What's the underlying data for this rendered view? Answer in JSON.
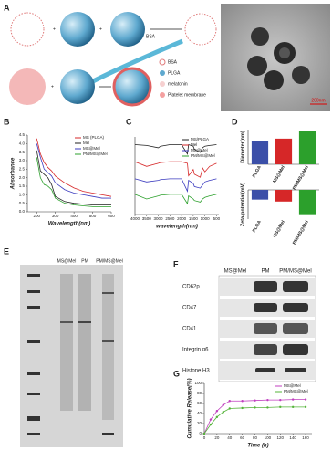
{
  "panels": [
    "A",
    "B",
    "C",
    "D",
    "E",
    "F",
    "G"
  ],
  "schematic": {
    "arrow_label": "BSA",
    "legend": [
      "BSA",
      "PLGA",
      "melatonin",
      "Platelet membrane"
    ],
    "scale_bar": "200nm"
  },
  "gel": {
    "lanes": [
      "MS@Mel",
      "PM",
      "PM/MS@Mel"
    ]
  },
  "blot": {
    "lanes": [
      "MS@Mel",
      "PM",
      "PM/MS@Mel"
    ],
    "rows": [
      "CD62p",
      "CD47",
      "CD41",
      "Integrin α6",
      "Histone H3"
    ]
  },
  "chart_data": [
    {
      "type": "line",
      "x_label": "Wavelength(nm)",
      "y_label": "Absorbance",
      "legend": "upper right",
      "x": [
        200,
        220,
        240,
        260,
        280,
        300,
        350,
        400,
        450,
        500,
        550,
        600
      ],
      "xlim": [
        150,
        600
      ],
      "xticks": [
        200,
        300,
        400,
        500,
        600
      ],
      "ylim": [
        0,
        4.5
      ],
      "yticks": [
        {
          "value": 0,
          "label": "0.0"
        },
        0.5,
        {
          "value": 1,
          "label": "1.0"
        },
        1.5,
        {
          "value": 2,
          "label": "2.0"
        },
        2.5,
        {
          "value": 3,
          "label": "3.0"
        },
        3.5,
        {
          "value": 4,
          "label": "4.0"
        },
        4.5
      ],
      "series": [
        {
          "name": "MS (PLGA)",
          "color": "#d62728",
          "values": [
            4.3,
            3.4,
            2.9,
            2.6,
            2.4,
            2.1,
            1.7,
            1.4,
            1.2,
            1.1,
            1.0,
            0.9
          ]
        },
        {
          "name": "Mel",
          "color": "#222222",
          "values": [
            3.6,
            2.4,
            2.2,
            2.0,
            1.6,
            0.9,
            0.6,
            0.5,
            0.45,
            0.4,
            0.4,
            0.4
          ]
        },
        {
          "name": "MS@Mel",
          "color": "#3b3bbf",
          "values": [
            4.0,
            3.2,
            2.5,
            2.3,
            2.1,
            1.7,
            1.3,
            1.1,
            1.0,
            0.9,
            0.8,
            0.8
          ]
        },
        {
          "name": "PM/MS@Mel",
          "color": "#2ca02c",
          "values": [
            3.2,
            2.0,
            1.6,
            1.5,
            1.3,
            0.8,
            0.5,
            0.4,
            0.35,
            0.3,
            0.3,
            0.3
          ]
        }
      ]
    },
    {
      "type": "line",
      "x_label": "wavelength(nm)",
      "legend": "upper right",
      "x": [
        4000,
        3500,
        3000,
        2900,
        2500,
        2000,
        1750,
        1700,
        1500,
        1450,
        1200,
        1100,
        1000,
        800,
        500
      ],
      "xlim": [
        4000,
        400
      ],
      "xticks": [
        4000,
        3500,
        3000,
        2500,
        2000,
        1500,
        1000,
        500
      ],
      "ylim": [
        0,
        100
      ],
      "series": [
        {
          "name": "MS/PLGA",
          "color": "#222222",
          "values": [
            90,
            89,
            86,
            88,
            90,
            90,
            78,
            90,
            88,
            84,
            80,
            86,
            88,
            89,
            90
          ]
        },
        {
          "name": "Mel",
          "color": "#d62728",
          "values": [
            68,
            62,
            66,
            67,
            68,
            68,
            66,
            50,
            58,
            52,
            48,
            60,
            55,
            62,
            66
          ]
        },
        {
          "name": "MS@Mel",
          "color": "#3b3bbf",
          "values": [
            46,
            42,
            44,
            45,
            46,
            46,
            30,
            44,
            40,
            36,
            34,
            38,
            42,
            44,
            46
          ]
        },
        {
          "name": "PM/MS@Mel",
          "color": "#2ca02c",
          "values": [
            26,
            20,
            24,
            25,
            26,
            26,
            14,
            24,
            20,
            18,
            16,
            20,
            22,
            24,
            26
          ]
        }
      ]
    },
    {
      "type": "bar",
      "y_label": "Diameter(nm)",
      "categories": [
        "PLGA",
        "MS@Mel",
        "PM/MS@Mel"
      ],
      "values": [
        170,
        185,
        240
      ],
      "colors": [
        "#3b4fa8",
        "#d62728",
        "#2ca02c"
      ],
      "ylim": [
        0,
        250
      ]
    },
    {
      "type": "bar",
      "y_label": "Zeta-potential(mV)",
      "categories": [
        "PLGA",
        "MS@Mel",
        "PM/MS@Mel"
      ],
      "values": [
        -10,
        -12,
        -25
      ],
      "colors": [
        "#3b4fa8",
        "#d62728",
        "#2ca02c"
      ],
      "ylim": [
        -30,
        0
      ]
    },
    {
      "type": "line",
      "x_label": "Time (h)",
      "y_label": "Cumulative Release(%)",
      "legend": "upper right",
      "markers": true,
      "x": [
        0,
        10,
        20,
        30,
        40,
        60,
        80,
        100,
        120,
        140,
        160
      ],
      "xlim": [
        0,
        170
      ],
      "xticks": [
        0,
        20,
        40,
        60,
        80,
        100,
        120,
        140,
        160
      ],
      "ylim": [
        0,
        100
      ],
      "yticks": [
        0,
        20,
        40,
        60,
        80,
        100
      ],
      "series": [
        {
          "name": "MS@Mel",
          "color": "#c03fbf",
          "values": [
            0,
            28,
            45,
            57,
            65,
            65,
            66,
            67,
            67,
            68,
            68
          ]
        },
        {
          "name": "PM/MS@Mel",
          "color": "#55b43a",
          "values": [
            0,
            18,
            33,
            43,
            50,
            51,
            52,
            52,
            53,
            53,
            53
          ]
        }
      ]
    }
  ]
}
